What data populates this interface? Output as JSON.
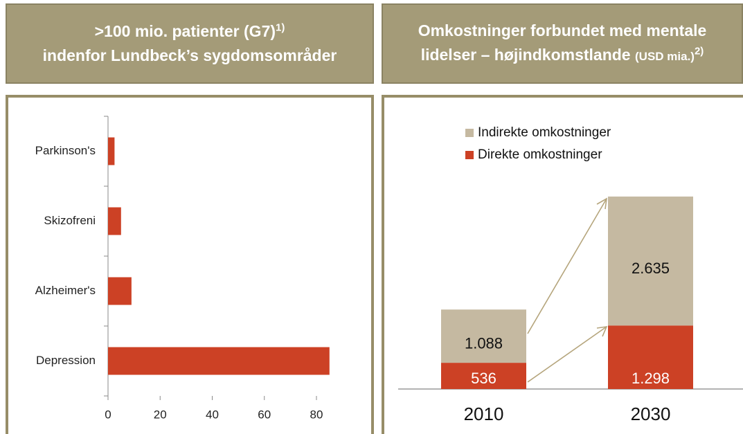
{
  "chart_data": [
    {
      "type": "hbar",
      "title": ">100 mio. patienter (G7)",
      "title_note": "1)",
      "subtitle": "indenfor Lundbeck’s sygdomsområder",
      "categories": [
        "Parkinson's",
        "Skizofreni",
        "Alzheimer's",
        "Depression"
      ],
      "values": [
        2.5,
        5,
        9,
        85
      ],
      "color": "#cc4125",
      "xlim": [
        0,
        90
      ],
      "xticks": [
        0,
        20,
        40,
        60,
        80
      ]
    },
    {
      "type": "stacked_bar",
      "title": "Omkostninger forbundet med mentale lidelser – højindkomstlande",
      "title_unit": "(USD mia.)",
      "title_note": "2)",
      "categories": [
        "2010",
        "2030"
      ],
      "series": [
        {
          "name": "Direkte omkostninger",
          "color": "#cc4125",
          "values": [
            536,
            1298
          ],
          "value_labels": [
            "536",
            "1.298"
          ]
        },
        {
          "name": "Indirekte omkostninger",
          "color": "#c5b9a1",
          "values": [
            1088,
            2635
          ],
          "value_labels": [
            "1.088",
            "2.635"
          ]
        }
      ]
    }
  ]
}
